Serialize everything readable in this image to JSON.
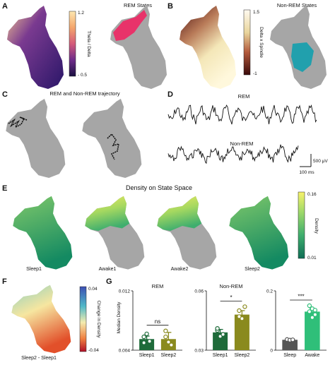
{
  "panels": {
    "A": {
      "label": "A",
      "title": "REM States",
      "colorbar": {
        "label": "Theta / Delta",
        "max": "1.2",
        "min": "- 0.5"
      }
    },
    "B": {
      "label": "B",
      "title": "Non-REM States",
      "colorbar": {
        "label": "Delta x Spindle",
        "max": "1.5",
        "min": "-1"
      }
    },
    "C": {
      "label": "C",
      "title": "REM and Non-REM trajectory"
    },
    "D": {
      "label": "D",
      "rem_label": "REM",
      "nonrem_label": "Non-REM",
      "scale_v": "500 μV",
      "scale_t": "100 ms"
    },
    "E": {
      "label": "E",
      "title": "Density on State Space",
      "captions": [
        "Sleep1",
        "Awake1",
        "Awake2",
        "Sleep2"
      ],
      "colorbar": {
        "label": "Density",
        "max": "0.16",
        "min": "0.01"
      }
    },
    "F": {
      "label": "F",
      "caption": "Sleep2 - Sleep1",
      "colorbar": {
        "label": "Change in Density",
        "max": "0.04",
        "min": "-0.04"
      }
    },
    "G": {
      "label": "G",
      "ylabel": "Median Density"
    }
  },
  "colors": {
    "gray_map": "#a6a6a6",
    "rem_highlight": "#e8336a",
    "nonrem_highlight": "#21a0ad",
    "dark_green": "#1e6b3a",
    "olive": "#8a8a1e",
    "sleep_gray": "#555555",
    "awake_green": "#2fbf79"
  },
  "chart_data": [
    {
      "type": "bar",
      "title": "REM",
      "categories": [
        "Sleep1",
        "Sleep2"
      ],
      "values": [
        0.0055,
        0.0055
      ],
      "errors": [
        0.0004,
        0.0009
      ],
      "points": [
        [
          0.0058,
          0.0062,
          0.0052,
          0.005
        ],
        [
          0.0066,
          0.0051,
          0.0047,
          0.0058
        ]
      ],
      "ylim": [
        0.004,
        0.012
      ],
      "yticks": [
        "0.004",
        "0.012"
      ],
      "significance": "ns",
      "colors": [
        "#1e6b3a",
        "#8a8a1e"
      ]
    },
    {
      "type": "bar",
      "title": "Non-REM",
      "categories": [
        "Sleep1",
        "Sleep2"
      ],
      "values": [
        0.039,
        0.048
      ],
      "errors": [
        0.0015,
        0.002
      ],
      "points": [
        [
          0.04,
          0.037,
          0.038,
          0.041
        ],
        [
          0.05,
          0.046,
          0.052,
          0.047
        ]
      ],
      "ylim": [
        0.03,
        0.06
      ],
      "yticks": [
        "0.03",
        "0.06"
      ],
      "significance": "*",
      "colors": [
        "#1e6b3a",
        "#8a8a1e"
      ]
    },
    {
      "type": "bar",
      "title": "",
      "categories": [
        "Sleep",
        "Awake"
      ],
      "values": [
        0.035,
        0.13
      ],
      "errors": [
        0.003,
        0.01
      ],
      "points": [
        [
          0.036,
          0.034,
          0.035
        ],
        [
          0.15,
          0.14,
          0.12,
          0.13,
          0.11,
          0.135
        ]
      ],
      "ylim": [
        0,
        0.2
      ],
      "yticks": [
        "0",
        "0.2"
      ],
      "significance": "***",
      "colors": [
        "#555555",
        "#2fbf79"
      ]
    }
  ]
}
